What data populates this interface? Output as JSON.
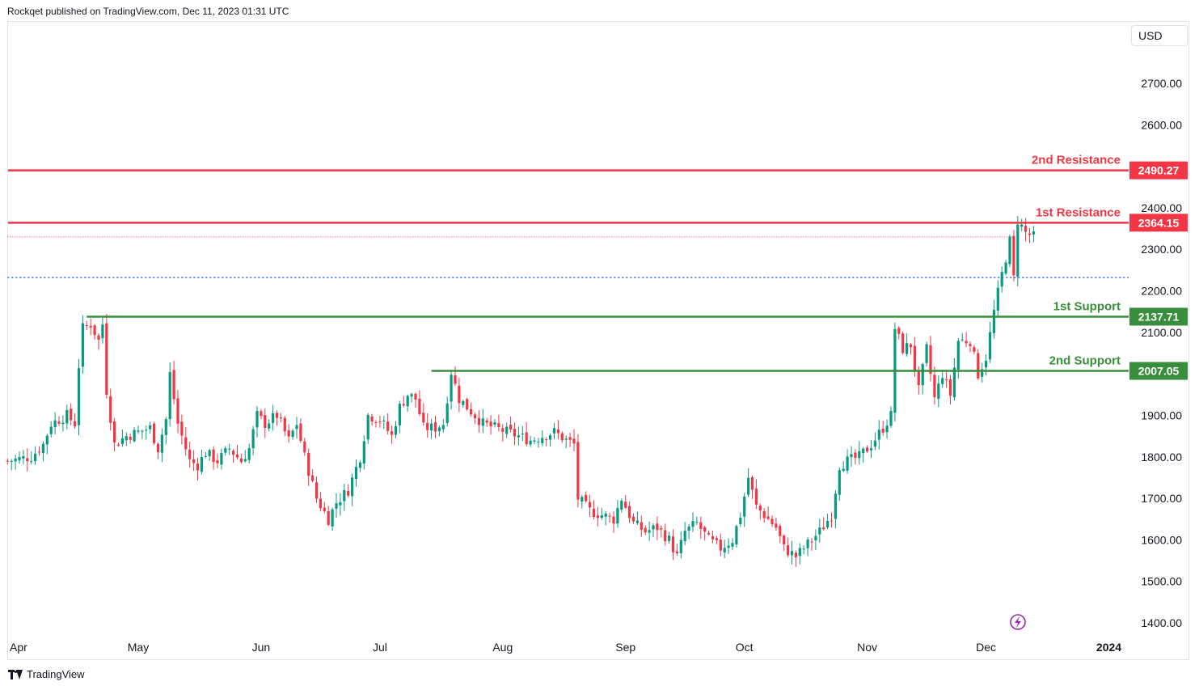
{
  "header": {
    "publisher_line": "Rockqet published on TradingView.com, Dec 11, 2023 01:31 UTC"
  },
  "toolbar": {
    "currency": "USD"
  },
  "footer": {
    "brand": "TradingView"
  },
  "colors": {
    "up": "#089981",
    "down": "#f23645",
    "resistance": "#f23645",
    "support": "#388e3c",
    "dotted_blue": "#2962ff"
  },
  "icons": {
    "flash": "lightning-icon",
    "logo": "tradingview-logo-icon"
  },
  "chart_data": {
    "type": "candlestick",
    "title": "",
    "ylim": [
      1380,
      2760
    ],
    "y_ticks": [
      "2700.00",
      "2600.00",
      "2400.00",
      "2300.00",
      "2200.00",
      "2100.00",
      "1900.00",
      "1800.00",
      "1700.00",
      "1600.00",
      "1500.00",
      "1400.00"
    ],
    "x_labels": [
      {
        "label": "Apr",
        "day": 0
      },
      {
        "label": "May",
        "day": 30
      },
      {
        "label": "Jun",
        "day": 61
      },
      {
        "label": "Jul",
        "day": 91
      },
      {
        "label": "Aug",
        "day": 122
      },
      {
        "label": "Sep",
        "day": 153
      },
      {
        "label": "Oct",
        "day": 183
      },
      {
        "label": "Nov",
        "day": 214
      },
      {
        "label": "Dec",
        "day": 244
      },
      {
        "label": "2024",
        "day": 275
      }
    ],
    "levels": [
      {
        "name": "2nd Resistance",
        "value": 2490.27,
        "value_label": "2490.27",
        "kind": "resistance",
        "start_day": -3
      },
      {
        "name": "1st Resistance",
        "value": 2364.15,
        "value_label": "2364.15",
        "kind": "resistance",
        "start_day": -3
      },
      {
        "name": "1st Support",
        "value": 2137.71,
        "value_label": "2137.71",
        "kind": "support",
        "start_day": 17
      },
      {
        "name": "2nd Support",
        "value": 2007.05,
        "value_label": "2007.05",
        "kind": "support",
        "start_day": 104
      }
    ],
    "dotted_lines": [
      {
        "value": 2330,
        "color": "#f23645",
        "start_day": -3,
        "end_day": 251
      },
      {
        "value": 2232,
        "color": "#2962ff",
        "start_day": -3,
        "end_day": 280
      }
    ],
    "close_anchors": [
      [
        -3,
        1790
      ],
      [
        3,
        1800
      ],
      [
        6,
        1830
      ],
      [
        8,
        1880
      ],
      [
        12,
        1900
      ],
      [
        14,
        1880
      ],
      [
        15,
        2020
      ],
      [
        16,
        2110
      ],
      [
        18,
        2120
      ],
      [
        20,
        2080
      ],
      [
        21,
        2120
      ],
      [
        22,
        1960
      ],
      [
        24,
        1830
      ],
      [
        27,
        1850
      ],
      [
        30,
        1860
      ],
      [
        33,
        1870
      ],
      [
        35,
        1820
      ],
      [
        37,
        1890
      ],
      [
        38,
        2000
      ],
      [
        40,
        1880
      ],
      [
        43,
        1790
      ],
      [
        45,
        1780
      ],
      [
        47,
        1810
      ],
      [
        50,
        1790
      ],
      [
        53,
        1820
      ],
      [
        56,
        1790
      ],
      [
        58,
        1820
      ],
      [
        60,
        1900
      ],
      [
        62,
        1880
      ],
      [
        65,
        1900
      ],
      [
        68,
        1840
      ],
      [
        70,
        1880
      ],
      [
        72,
        1800
      ],
      [
        75,
        1700
      ],
      [
        78,
        1650
      ],
      [
        80,
        1690
      ],
      [
        83,
        1720
      ],
      [
        86,
        1800
      ],
      [
        88,
        1900
      ],
      [
        91,
        1890
      ],
      [
        94,
        1850
      ],
      [
        96,
        1920
      ],
      [
        98,
        1950
      ],
      [
        100,
        1940
      ],
      [
        102,
        1870
      ],
      [
        105,
        1870
      ],
      [
        107,
        1880
      ],
      [
        109,
        2005
      ],
      [
        111,
        1940
      ],
      [
        114,
        1910
      ],
      [
        117,
        1880
      ],
      [
        120,
        1870
      ],
      [
        123,
        1860
      ],
      [
        126,
        1850
      ],
      [
        129,
        1840
      ],
      [
        132,
        1850
      ],
      [
        135,
        1860
      ],
      [
        138,
        1840
      ],
      [
        140,
        1830
      ],
      [
        141,
        1700
      ],
      [
        144,
        1670
      ],
      [
        147,
        1660
      ],
      [
        150,
        1650
      ],
      [
        152,
        1700
      ],
      [
        153,
        1680
      ],
      [
        155,
        1640
      ],
      [
        158,
        1620
      ],
      [
        161,
        1630
      ],
      [
        164,
        1600
      ],
      [
        166,
        1560
      ],
      [
        168,
        1620
      ],
      [
        171,
        1640
      ],
      [
        174,
        1600
      ],
      [
        177,
        1580
      ],
      [
        180,
        1600
      ],
      [
        182,
        1660
      ],
      [
        184,
        1750
      ],
      [
        186,
        1680
      ],
      [
        188,
        1660
      ],
      [
        191,
        1630
      ],
      [
        193,
        1580
      ],
      [
        196,
        1560
      ],
      [
        199,
        1590
      ],
      [
        202,
        1620
      ],
      [
        205,
        1660
      ],
      [
        207,
        1780
      ],
      [
        209,
        1790
      ],
      [
        212,
        1800
      ],
      [
        215,
        1830
      ],
      [
        218,
        1870
      ],
      [
        220,
        1900
      ],
      [
        221,
        2110
      ],
      [
        223,
        2060
      ],
      [
        225,
        2070
      ],
      [
        227,
        1960
      ],
      [
        229,
        2060
      ],
      [
        231,
        1940
      ],
      [
        233,
        2000
      ],
      [
        235,
        1950
      ],
      [
        237,
        2080
      ],
      [
        240,
        2080
      ],
      [
        242,
        2000
      ],
      [
        244,
        2040
      ],
      [
        246,
        2150
      ],
      [
        248,
        2240
      ],
      [
        250,
        2320
      ],
      [
        251,
        2230
      ],
      [
        252,
        2370
      ],
      [
        254,
        2340
      ],
      [
        256,
        2330
      ]
    ]
  }
}
